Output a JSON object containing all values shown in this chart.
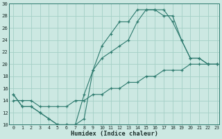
{
  "xlabel": "Humidex (Indice chaleur)",
  "xlim": [
    0,
    23
  ],
  "ylim": [
    10,
    30
  ],
  "xtick_vals": [
    0,
    1,
    2,
    3,
    4,
    5,
    6,
    7,
    8,
    9,
    10,
    11,
    12,
    13,
    14,
    15,
    16,
    17,
    18,
    19,
    20,
    21,
    22,
    23
  ],
  "ytick_vals": [
    10,
    12,
    14,
    16,
    18,
    20,
    22,
    24,
    26,
    28,
    30
  ],
  "bg_color": "#cce8e2",
  "line_color": "#2d7a6e",
  "grid_color": "#a4cfc6",
  "line1_x": [
    0,
    1,
    2,
    3,
    4,
    5,
    6,
    7,
    8,
    9,
    10,
    11,
    12,
    13,
    14,
    15,
    16,
    17,
    18,
    19,
    20,
    21,
    22,
    23
  ],
  "line1_y": [
    15,
    13,
    13,
    12,
    11,
    10,
    10,
    10,
    11,
    19,
    23,
    25,
    27,
    27,
    29,
    29,
    29,
    29,
    27,
    24,
    21,
    21,
    20,
    20
  ],
  "line2_x": [
    0,
    1,
    2,
    3,
    4,
    5,
    6,
    7,
    8,
    9,
    10,
    11,
    12,
    13,
    14,
    15,
    16,
    17,
    18,
    19,
    20,
    21,
    22,
    23
  ],
  "line2_y": [
    15,
    13,
    13,
    12,
    11,
    10,
    10,
    10,
    15,
    19,
    21,
    22,
    23,
    24,
    27,
    29,
    29,
    28,
    28,
    24,
    21,
    21,
    20,
    20
  ],
  "line3_x": [
    0,
    1,
    2,
    3,
    4,
    5,
    6,
    7,
    8,
    9,
    10,
    11,
    12,
    13,
    14,
    15,
    16,
    17,
    18,
    19,
    20,
    21,
    22,
    23
  ],
  "line3_y": [
    14,
    14,
    14,
    13,
    13,
    13,
    13,
    14,
    14,
    15,
    15,
    16,
    16,
    17,
    17,
    18,
    18,
    19,
    19,
    19,
    20,
    20,
    20,
    20
  ]
}
